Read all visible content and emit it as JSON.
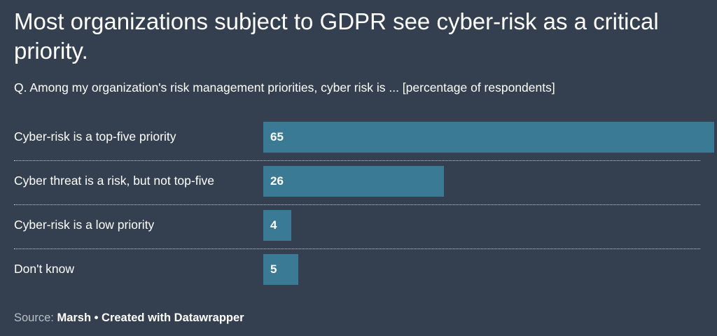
{
  "title": "Most organizations subject to GDPR see cyber-risk as a critical priority.",
  "subtitle": "Q. Among my organization's risk management priorities, cyber risk is ... [percentage of respondents]",
  "chart_data": {
    "type": "bar",
    "orientation": "horizontal",
    "categories": [
      "Cyber-risk is a top-five priority",
      "Cyber threat is a risk, but not top-five",
      "Cyber-risk is a low priority",
      "Don't know"
    ],
    "values": [
      65,
      26,
      4,
      5
    ],
    "xlim": [
      0,
      65
    ],
    "bar_color": "#3b7a94",
    "background_color": "#343f4f"
  },
  "footer": {
    "source_label": "Source:",
    "source_name": "Marsh",
    "separator": "•",
    "credit": "Created with Datawrapper"
  }
}
